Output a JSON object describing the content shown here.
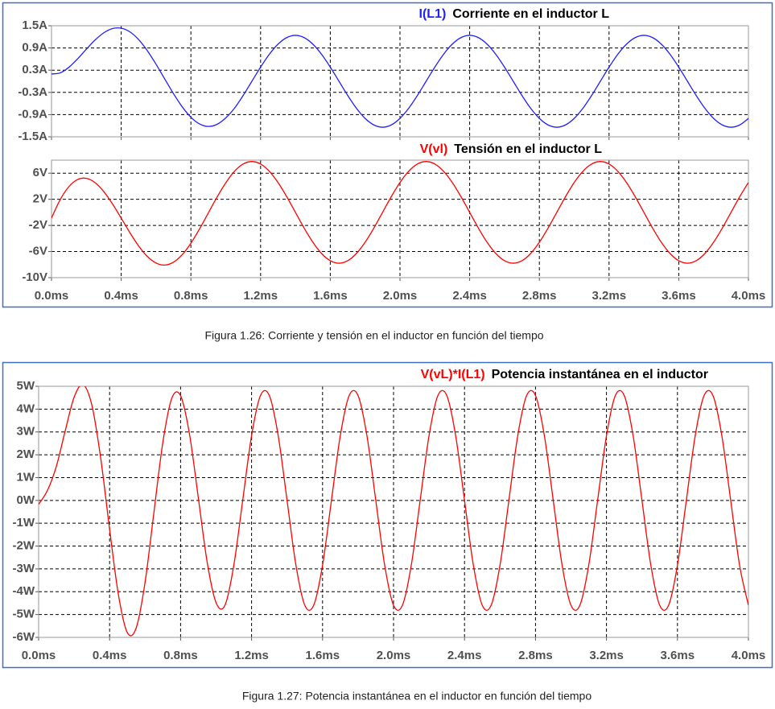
{
  "chart_data": [
    {
      "type": "line",
      "title": "Corriente en el inductor L",
      "x": [
        0,
        0.05,
        0.1,
        0.15,
        0.2,
        0.25,
        0.3,
        0.35,
        0.4,
        0.45,
        0.5,
        0.55,
        0.6,
        0.65,
        0.7,
        0.75,
        0.8,
        0.85,
        0.9,
        0.95,
        1.0,
        1.05,
        1.1,
        1.15,
        1.2,
        1.25,
        1.3,
        1.35,
        1.4,
        1.45,
        1.5,
        1.55,
        1.6,
        1.65,
        1.7,
        1.75,
        1.8,
        1.85,
        1.9,
        1.95,
        2.0,
        2.05,
        2.1,
        2.15,
        2.2,
        2.25,
        2.3,
        2.35,
        2.4,
        2.45,
        2.5,
        2.55,
        2.6,
        2.65,
        2.7,
        2.75,
        2.8,
        2.85,
        2.9,
        2.95,
        3.0,
        3.05,
        3.1,
        3.15,
        3.2,
        3.25,
        3.3,
        3.35,
        3.4,
        3.45,
        3.5,
        3.55,
        3.6,
        3.65,
        3.7,
        3.75,
        3.8,
        3.85,
        3.9,
        3.95,
        4.0
      ],
      "series": [
        {
          "name": "I(L1)",
          "color": "#1f1fff",
          "values": [
            0.197,
            0.227,
            0.379,
            0.607,
            0.867,
            1.114,
            1.31,
            1.424,
            1.434,
            1.334,
            1.127,
            0.827,
            0.461,
            0.062,
            -0.333,
            -0.689,
            -0.971,
            -1.154,
            -1.22,
            -1.163,
            -0.99,
            -0.729,
            -0.383,
            0,
            0.383,
            0.729,
            1.003,
            1.179,
            1.24,
            1.179,
            1.003,
            0.729,
            0.383,
            0,
            -0.383,
            -0.729,
            -1.003,
            -1.179,
            -1.24,
            -1.179,
            -1.003,
            -0.729,
            -0.383,
            0,
            0.383,
            0.729,
            1.003,
            1.179,
            1.24,
            1.179,
            1.003,
            0.729,
            0.383,
            0,
            -0.383,
            -0.729,
            -1.003,
            -1.179,
            -1.24,
            -1.179,
            -1.003,
            -0.729,
            -0.383,
            0,
            0.383,
            0.729,
            1.003,
            1.179,
            1.24,
            1.179,
            1.003,
            0.729,
            0.383,
            0,
            -0.383,
            -0.729,
            -1.003,
            -1.179,
            -1.24,
            -1.179,
            -1.003
          ]
        }
      ],
      "xlim": [
        0,
        4
      ],
      "xticks": [
        0,
        0.4,
        0.8,
        1.2,
        1.6,
        2.0,
        2.4,
        2.8,
        3.2,
        3.6,
        4.0
      ],
      "ylim": [
        -1.5,
        1.5
      ],
      "yticks": [
        {
          "value": 1.5,
          "label": "1.5A"
        },
        {
          "value": 0.9,
          "label": "0.9A"
        },
        {
          "value": 0.3,
          "label": "0.3A"
        },
        {
          "value": -0.3,
          "label": "-0.3A"
        },
        {
          "value": -0.9,
          "label": "-0.9A"
        },
        {
          "value": -1.5,
          "label": "-1.5A"
        }
      ],
      "grid": true
    },
    {
      "type": "line",
      "title": "Tensión en el inductor L",
      "x": [
        0,
        0.05,
        0.1,
        0.15,
        0.2,
        0.25,
        0.3,
        0.35,
        0.4,
        0.45,
        0.5,
        0.55,
        0.6,
        0.65,
        0.7,
        0.75,
        0.8,
        0.85,
        0.9,
        0.95,
        1.0,
        1.05,
        1.1,
        1.15,
        1.2,
        1.25,
        1.3,
        1.35,
        1.4,
        1.45,
        1.5,
        1.55,
        1.6,
        1.65,
        1.7,
        1.75,
        1.8,
        1.85,
        1.9,
        1.95,
        2.0,
        2.05,
        2.1,
        2.15,
        2.2,
        2.25,
        2.3,
        2.35,
        2.4,
        2.45,
        2.5,
        2.55,
        2.6,
        2.65,
        2.7,
        2.75,
        2.8,
        2.85,
        2.9,
        2.95,
        3.0,
        3.05,
        3.1,
        3.15,
        3.2,
        3.25,
        3.3,
        3.35,
        3.4,
        3.45,
        3.5,
        3.55,
        3.6,
        3.65,
        3.7,
        3.75,
        3.8,
        3.85,
        3.9,
        3.95,
        4.0
      ],
      "series": [
        {
          "name": "V(vl)",
          "color": "#ff0000",
          "values": [
            -0.869,
            1.958,
            3.947,
            5.032,
            5.212,
            4.553,
            3.186,
            1.295,
            -0.883,
            -3.11,
            -5.142,
            -6.749,
            -7.762,
            -8.073,
            -7.634,
            -6.482,
            -4.724,
            -2.521,
            -0.091,
            2.335,
            4.523,
            6.302,
            7.408,
            7.79,
            7.408,
            6.302,
            4.581,
            2.407,
            0,
            -2.407,
            -4.581,
            -6.302,
            -7.408,
            -7.79,
            -7.408,
            -6.302,
            -4.581,
            -2.407,
            0,
            2.407,
            4.581,
            6.302,
            7.408,
            7.79,
            7.408,
            6.302,
            4.581,
            2.407,
            0,
            -2.407,
            -4.581,
            -6.302,
            -7.408,
            -7.79,
            -7.408,
            -6.302,
            -4.581,
            -2.407,
            0,
            2.407,
            4.581,
            6.302,
            7.408,
            7.79,
            7.408,
            6.302,
            4.581,
            2.407,
            0,
            -2.407,
            -4.581,
            -6.302,
            -7.408,
            -7.79,
            -7.408,
            -6.302,
            -4.581,
            -2.407,
            0,
            2.407,
            4.581
          ]
        }
      ],
      "xlim": [
        0,
        4
      ],
      "xticks": [
        {
          "value": 0,
          "label": "0.0ms"
        },
        {
          "value": 0.4,
          "label": "0.4ms"
        },
        {
          "value": 0.8,
          "label": "0.8ms"
        },
        {
          "value": 1.2,
          "label": "1.2ms"
        },
        {
          "value": 1.6,
          "label": "1.6ms"
        },
        {
          "value": 2.0,
          "label": "2.0ms"
        },
        {
          "value": 2.4,
          "label": "2.4ms"
        },
        {
          "value": 2.8,
          "label": "2.8ms"
        },
        {
          "value": 3.2,
          "label": "3.2ms"
        },
        {
          "value": 3.6,
          "label": "3.6ms"
        },
        {
          "value": 4.0,
          "label": "4.0ms"
        }
      ],
      "ylim": [
        -10,
        8
      ],
      "yticks": [
        {
          "value": 6,
          "label": "6V"
        },
        {
          "value": 2,
          "label": "2V"
        },
        {
          "value": -2,
          "label": "-2V"
        },
        {
          "value": -6,
          "label": "-6V"
        },
        {
          "value": -10,
          "label": "-10V"
        }
      ],
      "grid": true
    },
    {
      "type": "line",
      "title": "Potencia instantánea en el inductor",
      "x": [
        0,
        0.05,
        0.1,
        0.15,
        0.2,
        0.25,
        0.3,
        0.35,
        0.4,
        0.45,
        0.5,
        0.55,
        0.6,
        0.65,
        0.7,
        0.75,
        0.8,
        0.85,
        0.9,
        0.95,
        1.0,
        1.05,
        1.1,
        1.15,
        1.2,
        1.25,
        1.3,
        1.35,
        1.4,
        1.45,
        1.5,
        1.55,
        1.6,
        1.65,
        1.7,
        1.75,
        1.8,
        1.85,
        1.9,
        1.95,
        2.0,
        2.05,
        2.1,
        2.15,
        2.2,
        2.25,
        2.3,
        2.35,
        2.4,
        2.45,
        2.5,
        2.55,
        2.6,
        2.65,
        2.7,
        2.75,
        2.8,
        2.85,
        2.9,
        2.95,
        3.0,
        3.05,
        3.1,
        3.15,
        3.2,
        3.25,
        3.3,
        3.35,
        3.4,
        3.45,
        3.5,
        3.55,
        3.6,
        3.65,
        3.7,
        3.75,
        3.8,
        3.85,
        3.9,
        3.95,
        4.0
      ],
      "series": [
        {
          "name": "V(vL)*I(L1)",
          "color": "#ff0000",
          "values": [
            -0.171,
            0.444,
            1.496,
            3.054,
            4.519,
            5.072,
            4.174,
            1.844,
            -1.266,
            -4.149,
            -5.795,
            -5.581,
            -3.578,
            -0.501,
            2.542,
            4.466,
            4.587,
            2.909,
            0.111,
            -2.716,
            -4.478,
            -4.594,
            -2.837,
            0,
            2.837,
            4.594,
            4.595,
            2.838,
            0,
            -2.838,
            -4.595,
            -4.594,
            -2.837,
            0,
            2.837,
            4.594,
            4.595,
            2.838,
            0,
            -2.838,
            -4.595,
            -4.594,
            -2.837,
            0,
            2.837,
            4.594,
            4.595,
            2.838,
            0,
            -2.838,
            -4.595,
            -4.594,
            -2.837,
            0,
            2.837,
            4.594,
            4.595,
            2.838,
            0,
            -2.838,
            -4.595,
            -4.594,
            -2.837,
            0,
            2.837,
            4.594,
            4.595,
            2.838,
            0,
            -2.838,
            -4.595,
            -4.594,
            -2.837,
            0,
            2.837,
            4.594,
            4.595,
            2.838,
            0,
            -2.838,
            -4.595
          ]
        }
      ],
      "xlim": [
        0,
        4
      ],
      "xticks": [
        {
          "value": 0,
          "label": "0.0ms"
        },
        {
          "value": 0.4,
          "label": "0.4ms"
        },
        {
          "value": 0.8,
          "label": "0.8ms"
        },
        {
          "value": 1.2,
          "label": "1.2ms"
        },
        {
          "value": 1.6,
          "label": "1.6ms"
        },
        {
          "value": 2.0,
          "label": "2.0ms"
        },
        {
          "value": 2.4,
          "label": "2.4ms"
        },
        {
          "value": 2.8,
          "label": "2.8ms"
        },
        {
          "value": 3.2,
          "label": "3.2ms"
        },
        {
          "value": 3.6,
          "label": "3.6ms"
        },
        {
          "value": 4.0,
          "label": "4.0ms"
        }
      ],
      "ylim": [
        -6,
        5
      ],
      "yticks": [
        {
          "value": 5,
          "label": "5W"
        },
        {
          "value": 4,
          "label": "4W"
        },
        {
          "value": 3,
          "label": "3W"
        },
        {
          "value": 2,
          "label": "2W"
        },
        {
          "value": 1,
          "label": "1W"
        },
        {
          "value": 0,
          "label": "0W"
        },
        {
          "value": -1,
          "label": "-1W"
        },
        {
          "value": -2,
          "label": "-2W"
        },
        {
          "value": -3,
          "label": "-3W"
        },
        {
          "value": -4,
          "label": "-4W"
        },
        {
          "value": -5,
          "label": "-5W"
        },
        {
          "value": -6,
          "label": "-6W"
        }
      ],
      "grid": true
    }
  ],
  "captions": [
    "Figura 1.26: Corriente y tensión en el inductor en función del tiempo",
    "Figura 1.27: Potencia instantánea en el inductor en función del tiempo"
  ]
}
